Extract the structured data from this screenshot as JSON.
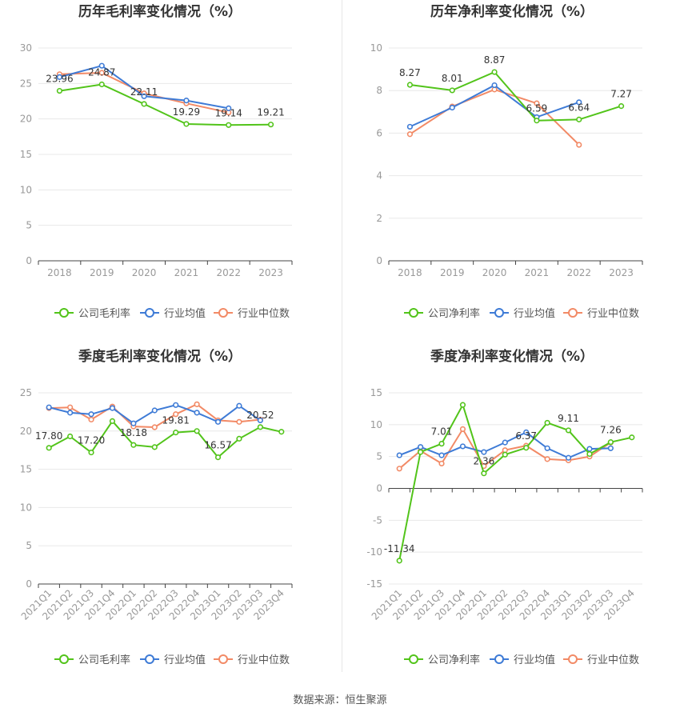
{
  "footer": {
    "source": "数据来源：恒生聚源"
  },
  "legend_labels": {
    "gross": "公司毛利率",
    "net": "公司净利率",
    "avg": "行业均值",
    "median": "行业中位数"
  },
  "colors": {
    "company": "#52c41a",
    "avg": "#3e7bd6",
    "median": "#f28a66",
    "grid": "#e8e8e8",
    "axis": "#999999",
    "label": "#333333",
    "title": "#333333"
  },
  "chart_data": [
    {
      "type": "line",
      "title": "历年毛利率变化情况（%）",
      "categories": [
        "2018",
        "2019",
        "2020",
        "2021",
        "2022",
        "2023"
      ],
      "ylim": [
        0,
        30
      ],
      "yticks": [
        0,
        5,
        10,
        15,
        20,
        25,
        30
      ],
      "grid": true,
      "legend": "bottom",
      "series": [
        {
          "name": "公司毛利率",
          "role": "company",
          "values": [
            23.96,
            24.87,
            22.11,
            19.29,
            19.14,
            19.21
          ],
          "labels": [
            "23.96",
            "24.87",
            "22.11",
            "19.29",
            "19.14",
            "19.21"
          ]
        },
        {
          "name": "行业均值",
          "role": "avg",
          "values": [
            25.9,
            27.5,
            23.2,
            22.6,
            21.5,
            null
          ]
        },
        {
          "name": "行业中位数",
          "role": "median",
          "values": [
            26.3,
            26.5,
            23.6,
            22.2,
            20.9,
            null
          ]
        }
      ]
    },
    {
      "type": "line",
      "title": "历年净利率变化情况（%）",
      "categories": [
        "2018",
        "2019",
        "2020",
        "2021",
        "2022",
        "2023"
      ],
      "ylim": [
        0,
        10
      ],
      "yticks": [
        0,
        2,
        4,
        6,
        8,
        10
      ],
      "grid": true,
      "legend": "bottom",
      "series": [
        {
          "name": "公司净利率",
          "role": "company",
          "values": [
            8.27,
            8.01,
            8.87,
            6.59,
            6.64,
            7.27
          ],
          "labels": [
            "8.27",
            "8.01",
            "8.87",
            "6.59",
            "6.64",
            "7.27"
          ]
        },
        {
          "name": "行业均值",
          "role": "avg",
          "values": [
            6.3,
            7.2,
            8.25,
            6.75,
            7.45,
            null
          ]
        },
        {
          "name": "行业中位数",
          "role": "median",
          "values": [
            5.95,
            7.25,
            8.05,
            7.4,
            5.45,
            null
          ]
        }
      ]
    },
    {
      "type": "line",
      "title": "季度毛利率变化情况（%）",
      "categories": [
        "2021Q1",
        "2021Q2",
        "2021Q3",
        "2021Q4",
        "2022Q1",
        "2022Q2",
        "2022Q3",
        "2022Q4",
        "2023Q1",
        "2023Q2",
        "2023Q3",
        "2023Q4"
      ],
      "ylim": [
        0,
        25
      ],
      "yticks": [
        0,
        5,
        10,
        15,
        20,
        25
      ],
      "grid": true,
      "legend": "bottom",
      "series": [
        {
          "name": "公司毛利率",
          "role": "company",
          "values": [
            17.8,
            19.3,
            17.2,
            21.3,
            18.18,
            17.9,
            19.81,
            20.0,
            16.57,
            19.0,
            20.52,
            19.9
          ],
          "labels": [
            "17.80",
            "",
            "17.20",
            "",
            "18.18",
            "",
            "19.81",
            "",
            "16.57",
            "",
            "20.52",
            ""
          ]
        },
        {
          "name": "行业均值",
          "role": "avg",
          "values": [
            23.1,
            22.4,
            22.2,
            23.0,
            21.0,
            22.7,
            23.4,
            22.4,
            21.2,
            23.3,
            21.4,
            null
          ]
        },
        {
          "name": "行业中位数",
          "role": "median",
          "values": [
            23.0,
            23.1,
            21.5,
            23.2,
            20.6,
            20.5,
            22.2,
            23.5,
            21.4,
            21.2,
            21.5,
            null
          ]
        }
      ]
    },
    {
      "type": "line",
      "title": "季度净利率变化情况（%）",
      "categories": [
        "2021Q1",
        "2021Q2",
        "2021Q3",
        "2021Q4",
        "2022Q1",
        "2022Q2",
        "2022Q3",
        "2022Q4",
        "2023Q1",
        "2023Q2",
        "2023Q3",
        "2023Q4"
      ],
      "ylim": [
        -15,
        15
      ],
      "yticks": [
        -15,
        -10,
        -5,
        0,
        5,
        10,
        15
      ],
      "grid": true,
      "legend": "bottom",
      "series": [
        {
          "name": "公司净利率",
          "role": "company",
          "values": [
            -11.34,
            5.7,
            7.01,
            13.1,
            2.36,
            5.3,
            6.37,
            10.3,
            9.11,
            5.4,
            7.26,
            8.0
          ],
          "labels": [
            "-11.34",
            "",
            "7.01",
            "",
            "2.36",
            "",
            "6.37",
            "",
            "9.11",
            "",
            "7.26",
            ""
          ]
        },
        {
          "name": "行业均值",
          "role": "avg",
          "values": [
            5.2,
            6.5,
            5.2,
            6.6,
            5.7,
            7.2,
            8.8,
            6.3,
            4.8,
            6.2,
            6.3,
            null
          ]
        },
        {
          "name": "行业中位数",
          "role": "median",
          "values": [
            3.1,
            5.9,
            3.9,
            9.3,
            3.5,
            6.0,
            6.7,
            4.6,
            4.4,
            5.0,
            7.2,
            null
          ]
        }
      ]
    }
  ]
}
